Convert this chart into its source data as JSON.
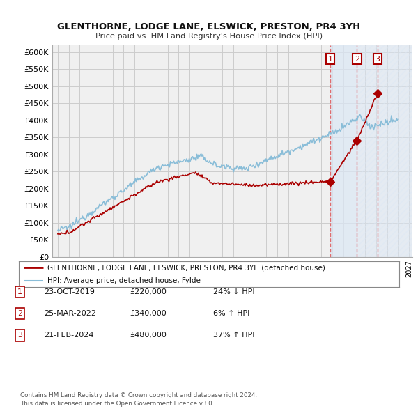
{
  "title": "GLENTHORNE, LODGE LANE, ELSWICK, PRESTON, PR4 3YH",
  "subtitle": "Price paid vs. HM Land Registry's House Price Index (HPI)",
  "ylim": [
    0,
    620000
  ],
  "yticks": [
    0,
    50000,
    100000,
    150000,
    200000,
    250000,
    300000,
    350000,
    400000,
    450000,
    500000,
    550000,
    600000
  ],
  "transactions": [
    {
      "date": 2019.81,
      "price": 220000,
      "label": "1"
    },
    {
      "date": 2022.23,
      "price": 340000,
      "label": "2"
    },
    {
      "date": 2024.12,
      "price": 480000,
      "label": "3"
    }
  ],
  "legend_line1": "GLENTHORNE, LODGE LANE, ELSWICK, PRESTON, PR4 3YH (detached house)",
  "legend_line2": "HPI: Average price, detached house, Fylde",
  "table_rows": [
    {
      "num": "1",
      "date": "23-OCT-2019",
      "price": "£220,000",
      "change": "24% ↓ HPI"
    },
    {
      "num": "2",
      "date": "25-MAR-2022",
      "price": "£340,000",
      "change": "6% ↑ HPI"
    },
    {
      "num": "3",
      "date": "21-FEB-2024",
      "price": "£480,000",
      "change": "37% ↑ HPI"
    }
  ],
  "footer": "Contains HM Land Registry data © Crown copyright and database right 2024.\nThis data is licensed under the Open Government Licence v3.0.",
  "bg_color": "#ffffff",
  "plot_bg_color": "#f0f0f0",
  "grid_color": "#cccccc",
  "hpi_color": "#89bdd8",
  "price_color": "#aa0000",
  "shade_color": "#dce8f5",
  "dash_color": "#e06060"
}
